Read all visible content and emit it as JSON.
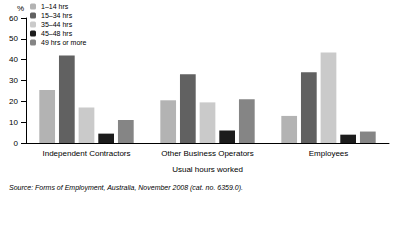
{
  "chart_data": {
    "type": "bar",
    "x_label": "Usual hours worked",
    "y_label": "%",
    "source": "Source: Forms of Employment, Australia, November 2008 (cat. no. 6359.0).",
    "categories": [
      "Independent Contractors",
      "Other Business Operators",
      "Employees"
    ],
    "series": [
      {
        "name": "1–14 hrs",
        "color": "#b3b3b3",
        "values": [
          25.5,
          20.5,
          13
        ]
      },
      {
        "name": "15–34 hrs",
        "color": "#616161",
        "values": [
          42,
          33,
          34
        ]
      },
      {
        "name": "35–44 hrs",
        "color": "#cacaca",
        "values": [
          17,
          19.5,
          43.5
        ]
      },
      {
        "name": "45–48 hrs",
        "color": "#1c1c1c",
        "values": [
          4.5,
          6,
          4
        ]
      },
      {
        "name": "49 hrs or more",
        "color": "#858585",
        "values": [
          11,
          21,
          5.5
        ]
      }
    ],
    "ylim": [
      0,
      60
    ],
    "yticks": [
      0,
      10,
      20,
      30,
      40,
      50,
      60
    ],
    "grid": false,
    "legend": "top-left"
  }
}
